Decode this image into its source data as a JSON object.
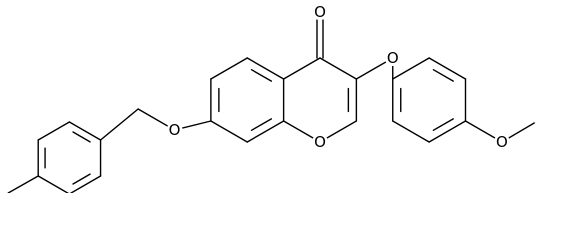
{
  "atoms": [
    {
      "label": "O"
    },
    {
      "label": "O"
    },
    {
      "label": "O"
    },
    {
      "label": "O"
    },
    {
      "label": "O"
    }
  ]
}
